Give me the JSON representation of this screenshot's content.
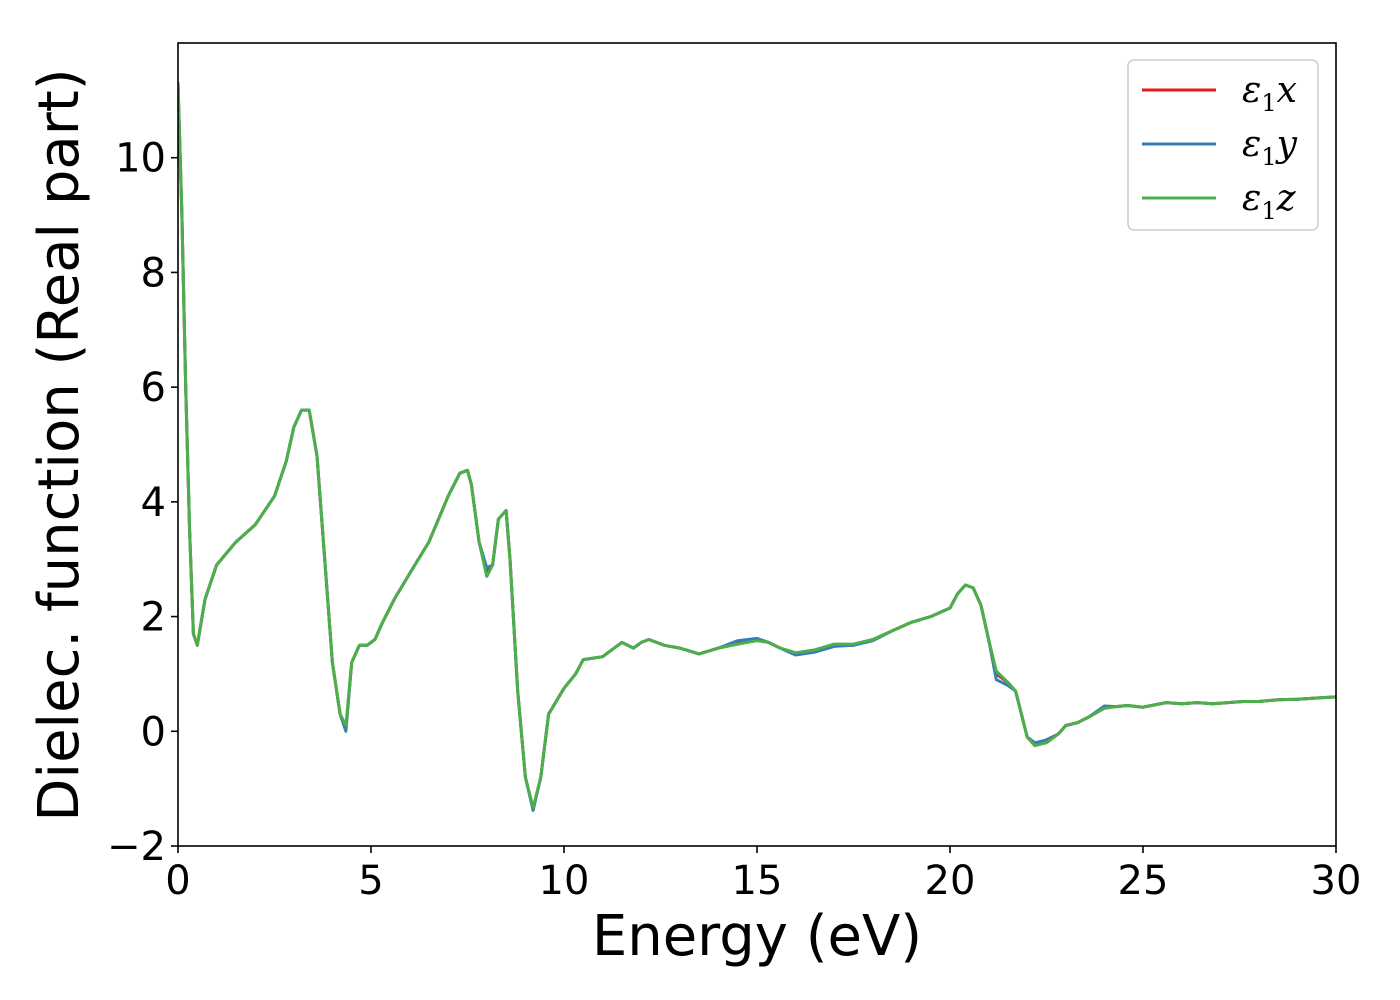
{
  "chart_data": {
    "type": "line",
    "xlabel": "Energy (eV)",
    "ylabel": "Dielec. function (Real part)",
    "xlim": [
      0,
      30
    ],
    "ylim": [
      -2,
      12
    ],
    "xticks": [
      0,
      5,
      10,
      15,
      20,
      25,
      30
    ],
    "yticks": [
      -2,
      0,
      2,
      4,
      6,
      8,
      10
    ],
    "xtick_labels": [
      "0",
      "5",
      "10",
      "15",
      "20",
      "25",
      "30"
    ],
    "ytick_labels": [
      "−2",
      "0",
      "2",
      "4",
      "6",
      "8",
      "10"
    ],
    "grid": false,
    "legend_position": "top-right",
    "series": [
      {
        "name": "ε1x",
        "color": "#e41a1c",
        "x": [
          0.0,
          0.1,
          0.2,
          0.3,
          0.4,
          0.5,
          0.7,
          1.0,
          1.5,
          2.0,
          2.5,
          2.8,
          3.0,
          3.2,
          3.4,
          3.6,
          3.8,
          4.0,
          4.2,
          4.35,
          4.5,
          4.7,
          4.9,
          5.1,
          5.3,
          5.6,
          6.0,
          6.5,
          7.0,
          7.3,
          7.5,
          7.6,
          7.8,
          8.0,
          8.15,
          8.3,
          8.5,
          8.6,
          8.8,
          9.0,
          9.2,
          9.4,
          9.6,
          10.0,
          10.3,
          10.5,
          11.0,
          11.3,
          11.5,
          11.8,
          12.0,
          12.2,
          12.6,
          13.0,
          13.5,
          14.0,
          14.5,
          15.0,
          15.3,
          15.6,
          16.0,
          16.5,
          17.0,
          17.5,
          18.0,
          18.5,
          19.0,
          19.5,
          20.0,
          20.2,
          20.4,
          20.6,
          20.8,
          21.0,
          21.2,
          21.5,
          21.7,
          22.0,
          22.2,
          22.5,
          22.8,
          23.0,
          23.3,
          23.6,
          24.0,
          24.3,
          24.6,
          25.0,
          25.3,
          25.6,
          26.0,
          26.4,
          26.8,
          27.2,
          27.6,
          28.0,
          28.5,
          29.0,
          29.5,
          30.0
        ],
        "values": [
          11.3,
          9.0,
          6.0,
          3.5,
          1.7,
          1.5,
          2.3,
          2.9,
          3.3,
          3.6,
          4.1,
          4.7,
          5.3,
          5.6,
          5.6,
          4.8,
          3.0,
          1.2,
          0.3,
          0.05,
          1.2,
          1.5,
          1.5,
          1.6,
          1.9,
          2.3,
          2.75,
          3.3,
          4.1,
          4.5,
          4.55,
          4.3,
          3.3,
          2.8,
          2.9,
          3.7,
          3.85,
          3.0,
          0.7,
          -0.8,
          -1.35,
          -0.8,
          0.3,
          0.75,
          1.0,
          1.25,
          1.3,
          1.45,
          1.55,
          1.45,
          1.55,
          1.6,
          1.5,
          1.45,
          1.35,
          1.45,
          1.55,
          1.6,
          1.55,
          1.45,
          1.35,
          1.4,
          1.5,
          1.5,
          1.6,
          1.75,
          1.9,
          2.0,
          2.15,
          2.4,
          2.55,
          2.5,
          2.2,
          1.6,
          1.0,
          0.85,
          0.7,
          -0.1,
          -0.25,
          -0.15,
          -0.05,
          0.1,
          0.15,
          0.25,
          0.42,
          0.43,
          0.45,
          0.42,
          0.46,
          0.5,
          0.48,
          0.5,
          0.48,
          0.5,
          0.52,
          0.52,
          0.55,
          0.56,
          0.58,
          0.6
        ]
      },
      {
        "name": "ε1y",
        "color": "#377eb8",
        "x": [
          0.0,
          0.1,
          0.2,
          0.3,
          0.4,
          0.5,
          0.7,
          1.0,
          1.5,
          2.0,
          2.5,
          2.8,
          3.0,
          3.2,
          3.4,
          3.6,
          3.8,
          4.0,
          4.2,
          4.35,
          4.5,
          4.7,
          4.9,
          5.1,
          5.3,
          5.6,
          6.0,
          6.5,
          7.0,
          7.3,
          7.5,
          7.6,
          7.8,
          8.0,
          8.15,
          8.3,
          8.5,
          8.6,
          8.8,
          9.0,
          9.2,
          9.4,
          9.6,
          10.0,
          10.3,
          10.5,
          11.0,
          11.3,
          11.5,
          11.8,
          12.0,
          12.2,
          12.6,
          13.0,
          13.5,
          14.0,
          14.5,
          15.0,
          15.3,
          15.6,
          16.0,
          16.5,
          17.0,
          17.5,
          18.0,
          18.5,
          19.0,
          19.5,
          20.0,
          20.2,
          20.4,
          20.6,
          20.8,
          21.0,
          21.2,
          21.5,
          21.7,
          22.0,
          22.2,
          22.5,
          22.8,
          23.0,
          23.3,
          23.6,
          24.0,
          24.3,
          24.6,
          25.0,
          25.3,
          25.6,
          26.0,
          26.4,
          26.8,
          27.2,
          27.6,
          28.0,
          28.5,
          29.0,
          29.5,
          30.0
        ],
        "values": [
          11.3,
          9.0,
          6.0,
          3.5,
          1.7,
          1.5,
          2.3,
          2.9,
          3.3,
          3.6,
          4.1,
          4.7,
          5.3,
          5.6,
          5.6,
          4.8,
          3.0,
          1.2,
          0.3,
          0.0,
          1.2,
          1.5,
          1.5,
          1.6,
          1.9,
          2.3,
          2.75,
          3.3,
          4.1,
          4.5,
          4.55,
          4.3,
          3.3,
          2.85,
          2.9,
          3.7,
          3.85,
          3.0,
          0.7,
          -0.8,
          -1.38,
          -0.8,
          0.3,
          0.75,
          1.0,
          1.25,
          1.3,
          1.45,
          1.55,
          1.45,
          1.55,
          1.6,
          1.5,
          1.45,
          1.35,
          1.45,
          1.58,
          1.62,
          1.55,
          1.45,
          1.33,
          1.38,
          1.48,
          1.5,
          1.58,
          1.75,
          1.9,
          2.0,
          2.15,
          2.4,
          2.55,
          2.5,
          2.2,
          1.6,
          0.9,
          0.8,
          0.7,
          -0.1,
          -0.2,
          -0.15,
          -0.05,
          0.1,
          0.15,
          0.25,
          0.44,
          0.43,
          0.45,
          0.42,
          0.46,
          0.5,
          0.48,
          0.5,
          0.48,
          0.5,
          0.52,
          0.52,
          0.55,
          0.56,
          0.58,
          0.6
        ]
      },
      {
        "name": "ε1z",
        "color": "#4daf4a",
        "x": [
          0.0,
          0.1,
          0.2,
          0.3,
          0.4,
          0.5,
          0.7,
          1.0,
          1.5,
          2.0,
          2.5,
          2.8,
          3.0,
          3.2,
          3.4,
          3.6,
          3.8,
          4.0,
          4.2,
          4.35,
          4.5,
          4.7,
          4.9,
          5.1,
          5.3,
          5.6,
          6.0,
          6.5,
          7.0,
          7.3,
          7.5,
          7.6,
          7.8,
          8.0,
          8.15,
          8.3,
          8.5,
          8.6,
          8.8,
          9.0,
          9.2,
          9.4,
          9.6,
          10.0,
          10.3,
          10.5,
          11.0,
          11.3,
          11.5,
          11.8,
          12.0,
          12.2,
          12.6,
          13.0,
          13.5,
          14.0,
          14.5,
          15.0,
          15.3,
          15.6,
          16.0,
          16.5,
          17.0,
          17.5,
          18.0,
          18.5,
          19.0,
          19.5,
          20.0,
          20.2,
          20.4,
          20.6,
          20.8,
          21.0,
          21.2,
          21.5,
          21.7,
          22.0,
          22.2,
          22.5,
          22.8,
          23.0,
          23.3,
          23.6,
          24.0,
          24.3,
          24.6,
          25.0,
          25.3,
          25.6,
          26.0,
          26.4,
          26.8,
          27.2,
          27.6,
          28.0,
          28.5,
          29.0,
          29.5,
          30.0
        ],
        "values": [
          11.3,
          9.0,
          6.0,
          3.5,
          1.7,
          1.5,
          2.3,
          2.9,
          3.3,
          3.6,
          4.1,
          4.7,
          5.3,
          5.6,
          5.6,
          4.8,
          3.0,
          1.2,
          0.3,
          0.1,
          1.2,
          1.5,
          1.5,
          1.6,
          1.9,
          2.3,
          2.75,
          3.3,
          4.1,
          4.5,
          4.55,
          4.3,
          3.3,
          2.7,
          2.9,
          3.7,
          3.85,
          3.0,
          0.7,
          -0.8,
          -1.33,
          -0.8,
          0.3,
          0.75,
          1.0,
          1.25,
          1.3,
          1.45,
          1.55,
          1.45,
          1.55,
          1.6,
          1.5,
          1.45,
          1.35,
          1.45,
          1.52,
          1.58,
          1.55,
          1.45,
          1.37,
          1.42,
          1.52,
          1.52,
          1.6,
          1.75,
          1.9,
          2.0,
          2.15,
          2.4,
          2.55,
          2.5,
          2.2,
          1.6,
          1.05,
          0.85,
          0.7,
          -0.1,
          -0.25,
          -0.2,
          -0.05,
          0.1,
          0.15,
          0.25,
          0.4,
          0.43,
          0.45,
          0.42,
          0.46,
          0.5,
          0.48,
          0.5,
          0.48,
          0.5,
          0.52,
          0.52,
          0.55,
          0.56,
          0.58,
          0.6
        ]
      }
    ]
  }
}
